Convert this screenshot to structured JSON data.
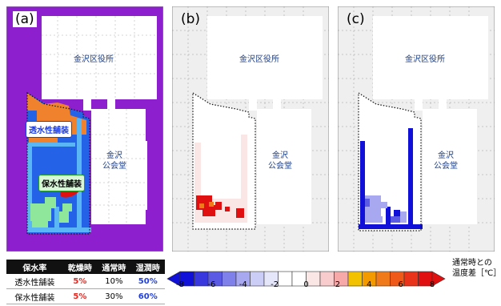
{
  "panels": [
    {
      "label": "(a)",
      "building_top": "金沢区役所",
      "building_right": "金沢\n公会堂"
    },
    {
      "label": "(b)",
      "building_top": "金沢区役所",
      "building_right": "金沢\n公会堂"
    },
    {
      "label": "(c)",
      "building_top": "金沢区役所",
      "building_right": "金沢\n公会堂"
    }
  ],
  "callouts": {
    "permeable": "透水性舗装",
    "water_retentive": "保水性舗装"
  },
  "table": {
    "header": [
      "保水率",
      "乾燥時",
      "通常時",
      "湿潤時"
    ],
    "rows": [
      [
        "透水性舗装",
        "5%",
        "10%",
        "50%"
      ],
      [
        "保水性舗装",
        "5%",
        "30%",
        "60%"
      ]
    ]
  },
  "colorbar": {
    "title_line1": "通常時との",
    "title_line2": "温度差［℃］",
    "ticks": [
      "-8",
      "-6",
      "-4",
      "-2",
      "0",
      "2",
      "4",
      "6",
      "8"
    ],
    "colors": [
      "#1010d8",
      "#3838de",
      "#5a5ae4",
      "#8080ea",
      "#a8a8f0",
      "#cccdf6",
      "#e6e6fa",
      "#ffffff",
      "#ffffff",
      "#fbe6e6",
      "#f8cccc",
      "#f7a8a8",
      "#f2c200",
      "#f39a00",
      "#f07a1a",
      "#ef5a1a",
      "#e9331a",
      "#e01010"
    ]
  },
  "colors": {
    "purple": "#8e1fcf",
    "blue_area": "#2463e8",
    "orange": "#f0822d",
    "green": "#8fe79b",
    "red": "#e01010"
  }
}
